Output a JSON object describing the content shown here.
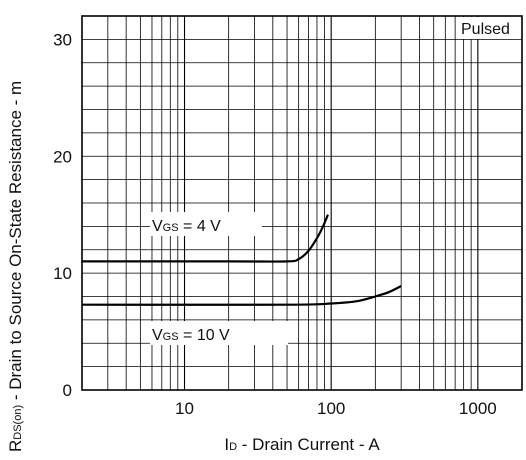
{
  "chart_data": {
    "type": "line",
    "xscale": "log",
    "xlim": [
      2,
      2000
    ],
    "ylim": [
      0,
      32
    ],
    "x_ticks": [
      10,
      100,
      1000
    ],
    "x_tick_labels": [
      "10",
      "100",
      "1000"
    ],
    "y_ticks": [
      0,
      10,
      20,
      30
    ],
    "y_tick_labels": [
      "0",
      "10",
      "20",
      "30"
    ],
    "grid": true,
    "ylabel": {
      "main": "R",
      "sub": "DS(on)",
      "rest": " - Drain to Source On-State Resistance - m"
    },
    "xlabel": {
      "main": "I",
      "sub": "D",
      "rest": " - Drain Current - A"
    },
    "note": "Pulsed",
    "series": [
      {
        "label_main": "V",
        "label_sub": "GS",
        "label_rest": " = 4 V",
        "x": [
          2,
          20,
          50,
          60,
          70,
          80,
          88,
          95
        ],
        "y": [
          11.0,
          11.0,
          11.0,
          11.2,
          11.9,
          13.0,
          14.0,
          15.0
        ]
      },
      {
        "label_main": "V",
        "label_sub": "GS",
        "label_rest": " = 10 V",
        "x": [
          2,
          50,
          100,
          150,
          200,
          250,
          300
        ],
        "y": [
          7.3,
          7.3,
          7.4,
          7.6,
          8.0,
          8.4,
          8.9
        ]
      }
    ]
  }
}
